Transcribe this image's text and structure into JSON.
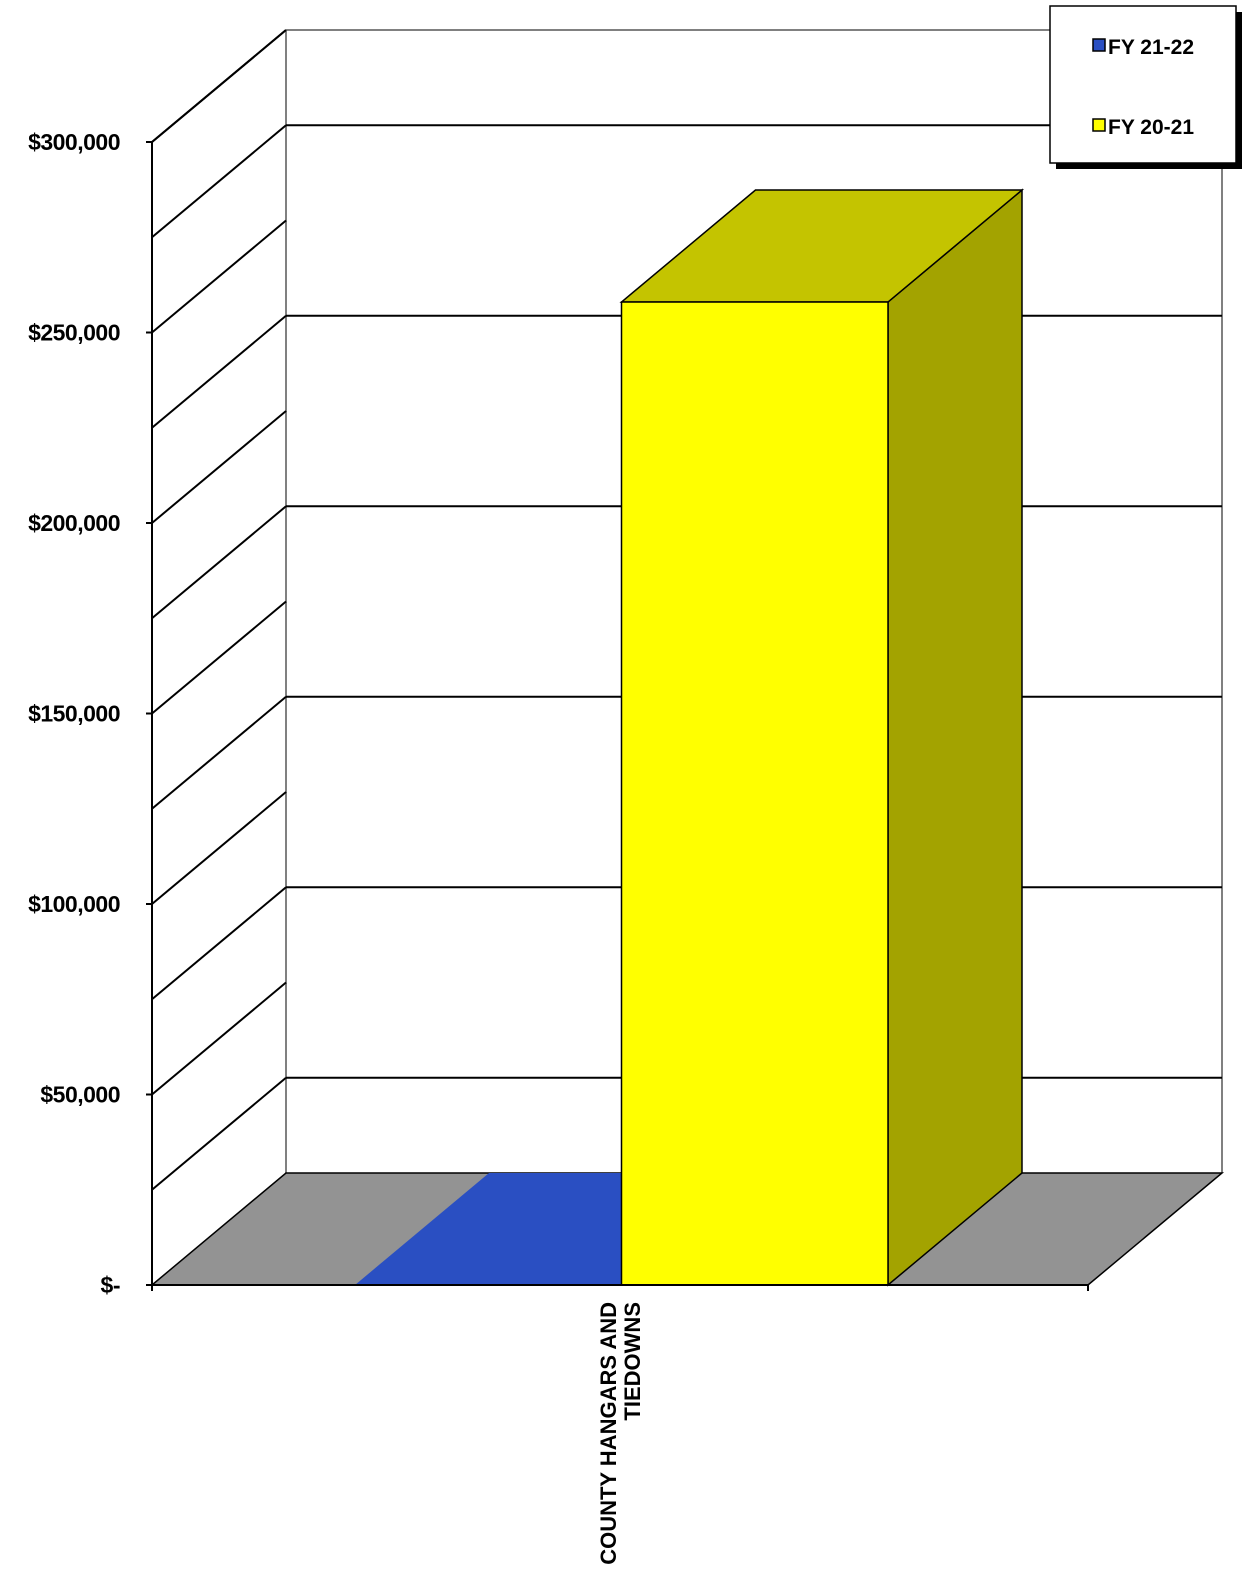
{
  "chart_data": {
    "type": "bar",
    "style": "3d-column",
    "categories": [
      "COUNTY HANGARS AND TIEDOWNS"
    ],
    "category_lines": [
      "COUNTY HANGARS AND",
      "TIEDOWNS"
    ],
    "series": [
      {
        "name": "FY 21-22",
        "values": [
          0
        ],
        "color": "#2a4fc2"
      },
      {
        "name": "FY 20-21",
        "values": [
          258000
        ],
        "color": "#ffff00"
      }
    ],
    "ylim": [
      0,
      300000
    ],
    "yticks": [
      0,
      50000,
      100000,
      150000,
      200000,
      250000,
      300000
    ],
    "ytick_labels": [
      "$-",
      "$50,000",
      "$100,000",
      "$150,000",
      "$200,000",
      "$250,000",
      "$300,000"
    ],
    "legend_position": "top-right",
    "grid": true,
    "floor_color": "#939393"
  }
}
